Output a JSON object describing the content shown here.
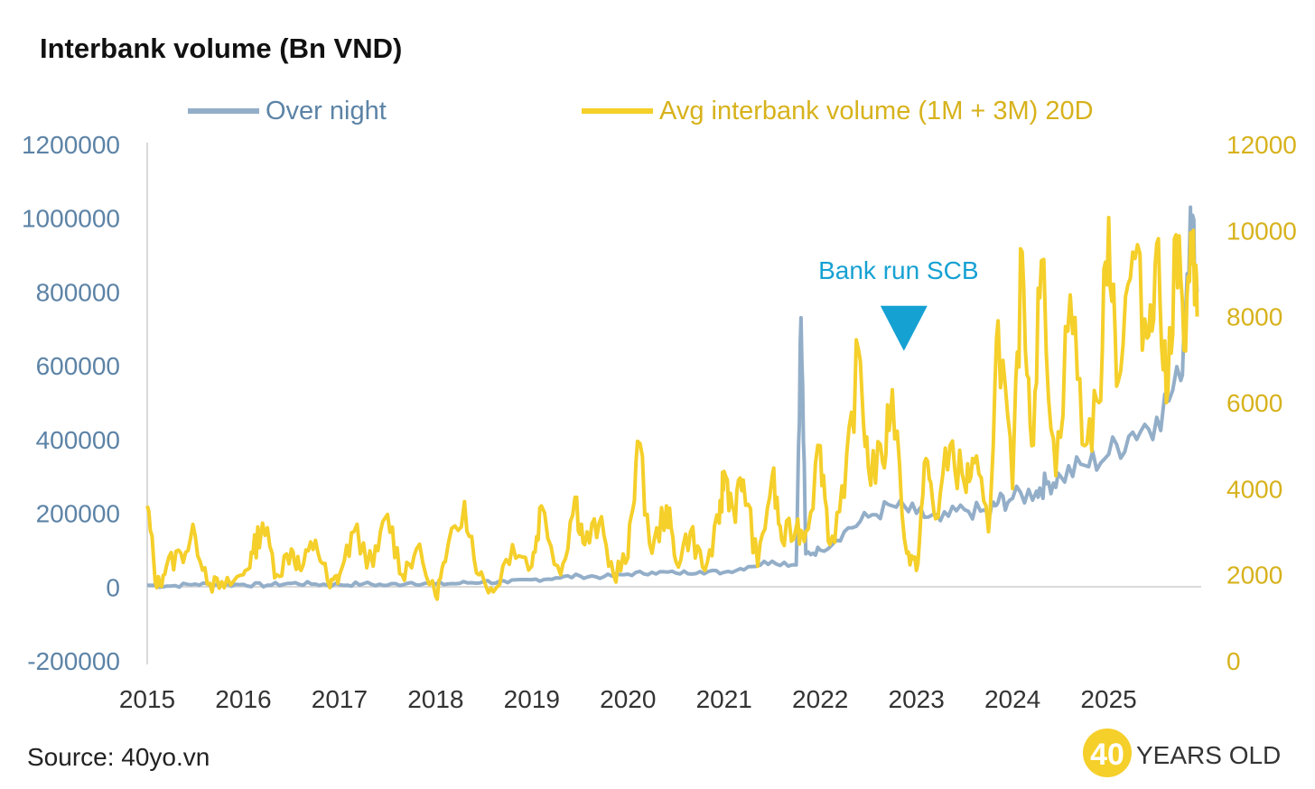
{
  "title": "Interbank volume (Bn VND)",
  "source": "Source: 40yo.vn",
  "brand": {
    "number": "40",
    "text": "YEARS OLD"
  },
  "colors": {
    "overnight": "#93aec8",
    "avg": "#f5cf2a",
    "annotation": "#16a1d3",
    "left_axis": "#5c83a6",
    "right_axis": "#d7b21c"
  },
  "chart_data": {
    "type": "line",
    "title": "Interbank volume (Bn VND)",
    "legend_position": "top",
    "grid": false,
    "x_ticks": [
      "2015",
      "2016",
      "2017",
      "2018",
      "2019",
      "2020",
      "2021",
      "2022",
      "2023",
      "2024",
      "2025"
    ],
    "y_left": {
      "range": [
        -200000,
        1200000
      ],
      "ticks": [
        "-200000",
        "0",
        "200000",
        "400000",
        "600000",
        "800000",
        "1000000",
        "1200000"
      ]
    },
    "y_right": {
      "range": [
        0,
        12000
      ],
      "ticks": [
        "0",
        "2000",
        "4000",
        "6000",
        "8000",
        "10000",
        "12000"
      ]
    },
    "series": [
      {
        "name": "Over night",
        "axis": "left",
        "x": [
          2015.0,
          2015.25,
          2015.5,
          2015.75,
          2016.0,
          2016.25,
          2016.5,
          2016.75,
          2017.0,
          2017.25,
          2017.5,
          2017.75,
          2018.0,
          2018.25,
          2018.5,
          2018.75,
          2019.0,
          2019.25,
          2019.5,
          2019.75,
          2020.0,
          2020.25,
          2020.5,
          2020.75,
          2021.0,
          2021.25,
          2021.5,
          2021.75,
          2021.8,
          2021.85,
          2022.0,
          2022.25,
          2022.5,
          2022.75,
          2023.0,
          2023.25,
          2023.5,
          2023.75,
          2023.85,
          2024.0,
          2024.25,
          2024.35,
          2024.5,
          2024.75,
          2025.0,
          2025.25,
          2025.5,
          2025.75,
          2025.85,
          2025.92
        ],
        "y": [
          5000,
          3000,
          8000,
          6000,
          7000,
          5000,
          10000,
          8000,
          6000,
          9000,
          5000,
          12000,
          8000,
          10000,
          15000,
          12000,
          20000,
          25000,
          30000,
          28000,
          35000,
          40000,
          38000,
          42000,
          40000,
          55000,
          70000,
          60000,
          730000,
          90000,
          100000,
          150000,
          190000,
          220000,
          200000,
          180000,
          210000,
          200000,
          230000,
          240000,
          260000,
          280000,
          300000,
          330000,
          360000,
          420000,
          460000,
          560000,
          1030000,
          800000
        ]
      },
      {
        "name": "Avg interbank volume (1M + 3M) 20D",
        "axis": "right",
        "x": [
          2015.0,
          2015.1,
          2015.2,
          2015.35,
          2015.5,
          2015.65,
          2015.8,
          2016.0,
          2016.1,
          2016.2,
          2016.35,
          2016.5,
          2016.6,
          2016.75,
          2016.9,
          2017.0,
          2017.15,
          2017.35,
          2017.5,
          2017.65,
          2017.8,
          2018.0,
          2018.1,
          2018.3,
          2018.45,
          2018.6,
          2018.8,
          2019.0,
          2019.1,
          2019.3,
          2019.45,
          2019.55,
          2019.7,
          2019.85,
          2020.0,
          2020.1,
          2020.25,
          2020.4,
          2020.5,
          2020.65,
          2020.8,
          2020.95,
          2021.0,
          2021.1,
          2021.2,
          2021.35,
          2021.5,
          2021.6,
          2021.75,
          2021.85,
          2022.0,
          2022.1,
          2022.25,
          2022.4,
          2022.5,
          2022.65,
          2022.75,
          2022.9,
          2023.0,
          2023.1,
          2023.2,
          2023.35,
          2023.5,
          2023.6,
          2023.75,
          2023.85,
          2024.0,
          2024.1,
          2024.2,
          2024.3,
          2024.45,
          2024.6,
          2024.75,
          2024.9,
          2025.0,
          2025.1,
          2025.25,
          2025.4,
          2025.5,
          2025.6,
          2025.7,
          2025.8,
          2025.88,
          2025.92
        ],
        "y": [
          3600,
          1700,
          2200,
          2500,
          2900,
          1800,
          1700,
          2000,
          2500,
          3200,
          2000,
          2600,
          2100,
          2800,
          1700,
          2000,
          3000,
          2200,
          3400,
          2000,
          2600,
          1500,
          2300,
          3700,
          2000,
          1600,
          2700,
          2200,
          3600,
          2000,
          3800,
          2700,
          3200,
          2000,
          2400,
          5100,
          2500,
          3600,
          2300,
          3000,
          2100,
          3200,
          4400,
          3500,
          4200,
          2200,
          4300,
          2800,
          3100,
          3000,
          5000,
          2700,
          3800,
          7200,
          4500,
          4600,
          6300,
          2500,
          2100,
          4700,
          3300,
          5000,
          4100,
          4600,
          3000,
          7900,
          4000,
          9500,
          5000,
          9300,
          4300,
          8500,
          5000,
          6000,
          10300,
          6500,
          9500,
          7500,
          9700,
          6000,
          9900,
          7200,
          10000,
          8000
        ]
      }
    ],
    "annotations": [
      {
        "text": "Bank run SCB",
        "x": 2022.87,
        "axis": "right",
        "y": 7200,
        "marker": "down-triangle"
      }
    ]
  }
}
